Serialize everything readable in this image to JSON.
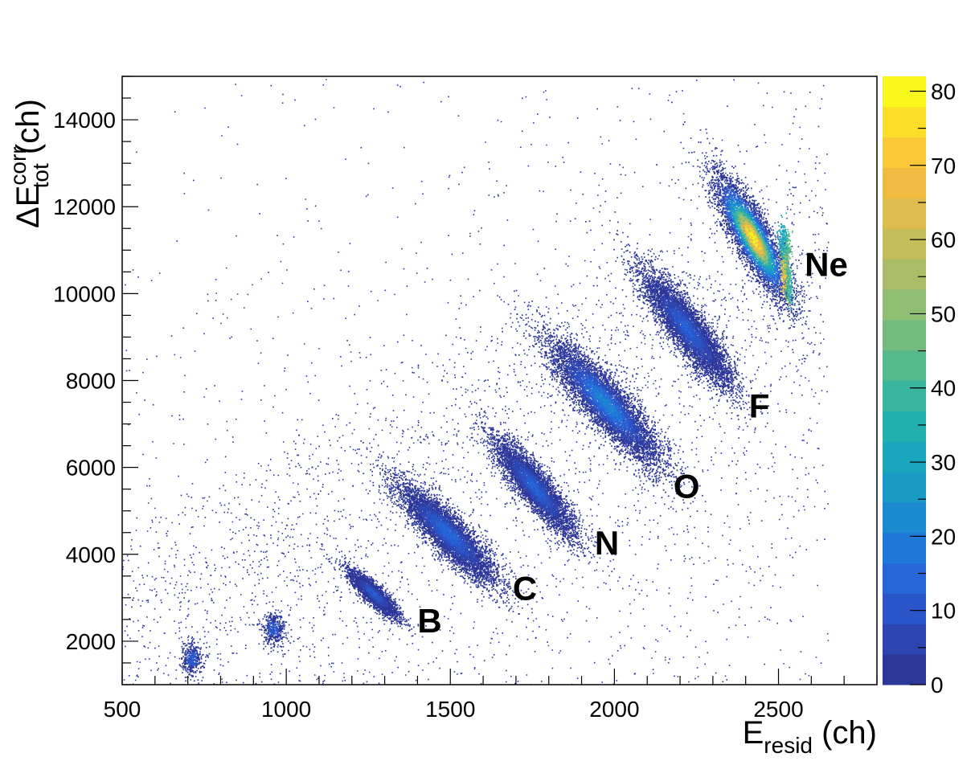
{
  "chart_data": {
    "type": "heatmap",
    "x": {
      "min": 500,
      "max": 2800,
      "ticks": [
        500,
        1000,
        1500,
        2000,
        2500
      ],
      "tick_labels": [
        "500",
        "1000",
        "1500",
        "2000",
        "2500"
      ]
    },
    "y": {
      "min": 1000,
      "max": 15000,
      "ticks": [
        2000,
        4000,
        6000,
        8000,
        10000,
        12000,
        14000
      ],
      "tick_labels": [
        "2000",
        "4000",
        "6000",
        "8000",
        "10000",
        "12000",
        "14000"
      ]
    },
    "xlabel": {
      "main": "E",
      "sub": "resid",
      "unit": " (ch)"
    },
    "ylabel": {
      "prefix": "ΔE",
      "sup": "corr",
      "sub": "tot",
      "unit": " (ch)"
    },
    "z": {
      "min": 0,
      "max": 82,
      "ticks": [
        0,
        10,
        20,
        30,
        40,
        50,
        60,
        70,
        80
      ],
      "tick_labels": [
        "0",
        "10",
        "20",
        "30",
        "40",
        "50",
        "60",
        "70",
        "80"
      ]
    },
    "palette": [
      "#2c3799",
      "#2c45b0",
      "#2a55c8",
      "#2566d8",
      "#1f78d8",
      "#1c8ad0",
      "#1a9ac6",
      "#1aa6bc",
      "#22b0ae",
      "#3ab59e",
      "#56b98d",
      "#73bc7e",
      "#90be72",
      "#aabd66",
      "#c5bd5b",
      "#ddbb4f",
      "#f0bb40",
      "#fbc83a",
      "#fbdd2a",
      "#f8f71c"
    ],
    "bands": [
      {
        "label": "B",
        "x_range": [
          1180,
          1350
        ],
        "y_range": [
          2500,
          3700
        ],
        "peak_counts": 12,
        "label_x": 1400,
        "label_y": 2200
      },
      {
        "label": "C",
        "x_range": [
          1320,
          1660
        ],
        "y_range": [
          3200,
          5800
        ],
        "peak_counts": 15,
        "label_x": 1690,
        "label_y": 2950
      },
      {
        "label": "N",
        "x_range": [
          1620,
          1890
        ],
        "y_range": [
          4300,
          6800
        ],
        "peak_counts": 14,
        "label_x": 1940,
        "label_y": 4000
      },
      {
        "label": "O",
        "x_range": [
          1780,
          2160
        ],
        "y_range": [
          5900,
          9100
        ],
        "peak_counts": 22,
        "label_x": 2180,
        "label_y": 5300
      },
      {
        "label": "F",
        "x_range": [
          2070,
          2370
        ],
        "y_range": [
          7700,
          10700
        ],
        "peak_counts": 13,
        "label_x": 2410,
        "label_y": 7150
      },
      {
        "label": "Ne",
        "x_range": [
          2300,
          2540
        ],
        "y_range": [
          9700,
          12900
        ],
        "peak_counts": 80,
        "label_x": 2580,
        "label_y": 10400
      }
    ],
    "small_clusters": [
      {
        "x": 960,
        "y": 2300,
        "peak_counts": 6
      },
      {
        "x": 710,
        "y": 1600,
        "peak_counts": 4
      }
    ]
  }
}
